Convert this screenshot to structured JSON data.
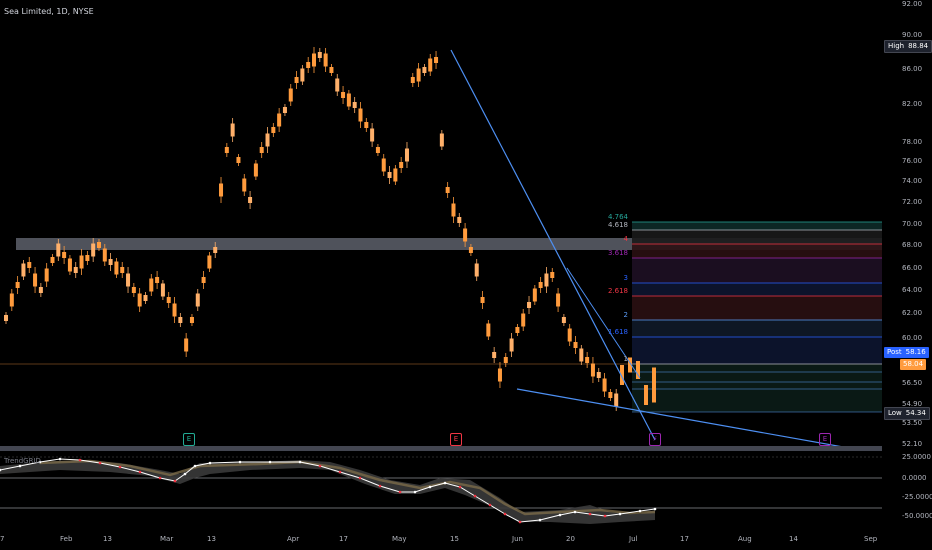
{
  "title": "Sea Limited, 1D, NYSE",
  "price_axis": {
    "top_value": "92.00",
    "labels": [
      "90.00",
      "86.00",
      "82.00",
      "78.00",
      "76.00",
      "74.00",
      "72.00",
      "70.00",
      "68.00",
      "66.00",
      "64.00",
      "62.00",
      "60.00",
      "56.50",
      "54.90",
      "53.50",
      "52.10"
    ],
    "high": {
      "key": "High",
      "value": "88.84"
    },
    "post": {
      "key": "Post",
      "value": "58.16"
    },
    "last": {
      "value": "58.04"
    },
    "low": {
      "key": "Low",
      "value": "54.34"
    }
  },
  "time_axis": [
    "7",
    "Feb",
    "13",
    "Mar",
    "13",
    "Apr",
    "17",
    "May",
    "15",
    "Jun",
    "20",
    "Jul",
    "17",
    "Aug",
    "14",
    "Sep"
  ],
  "fib_levels": [
    {
      "label": "4.764",
      "color": "#26a69a"
    },
    {
      "label": "4.618",
      "color": "#b2b5be"
    },
    {
      "label": "4",
      "color": "#f23645"
    },
    {
      "label": "3.618",
      "color": "#9c27b0"
    },
    {
      "label": "3",
      "color": "#2962ff"
    },
    {
      "label": "2.618",
      "color": "#f23645"
    },
    {
      "label": "2",
      "color": "#5b9cf6"
    },
    {
      "label": "1.618",
      "color": "#2962ff"
    },
    {
      "label": "1",
      "color": "#b2b5be"
    }
  ],
  "events": [
    {
      "label": "E",
      "color": "#22ab94"
    },
    {
      "label": "E",
      "color": "#f23645"
    },
    {
      "label": "⚡",
      "color": "#9c27b0"
    },
    {
      "label": "E",
      "color": "#9c27b0"
    }
  ],
  "indicator": {
    "name": "TrendGRID",
    "axis": [
      "25.0000",
      "0.0000",
      "-25.0000",
      "-50.0000"
    ]
  },
  "colors": {
    "candle": "#ff9b3d",
    "trendline": "#4d8ff2",
    "background": "#000000"
  }
}
